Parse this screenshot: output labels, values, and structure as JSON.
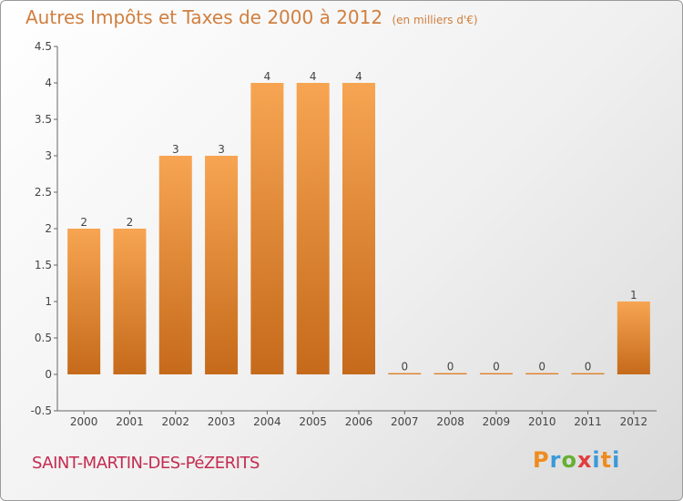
{
  "header": {
    "title": "Autres Impôts et Taxes de 2000 à 2012",
    "unit": "(en milliers d'€)"
  },
  "footer": {
    "commune": "SAINT-MARTIN-DES-PéZERITS",
    "logo": "Proxiti"
  },
  "colors": {
    "bar_top": "#f7a552",
    "bar_bottom": "#c56a1a",
    "title": "#d07f3e",
    "commune": "#c42b50"
  },
  "chart_data": {
    "type": "bar",
    "title": "Autres Impôts et Taxes de 2000 à 2012",
    "subtitle": "(en milliers d'€)",
    "categories": [
      "2000",
      "2001",
      "2002",
      "2003",
      "2004",
      "2005",
      "2006",
      "2007",
      "2008",
      "2009",
      "2010",
      "2011",
      "2012"
    ],
    "values": [
      2,
      2,
      3,
      3,
      4,
      4,
      4,
      0,
      0,
      0,
      0,
      0,
      1
    ],
    "data_labels": [
      "2",
      "2",
      "3",
      "3",
      "4",
      "4",
      "4",
      "0",
      "0",
      "0",
      "0",
      "0",
      "1"
    ],
    "ylim": [
      -0.5,
      4.5
    ],
    "yticks": [
      "-0.5",
      "0",
      "0.5",
      "1",
      "1.5",
      "2",
      "2.5",
      "3",
      "3.5",
      "4",
      "4.5"
    ],
    "grid": false
  }
}
